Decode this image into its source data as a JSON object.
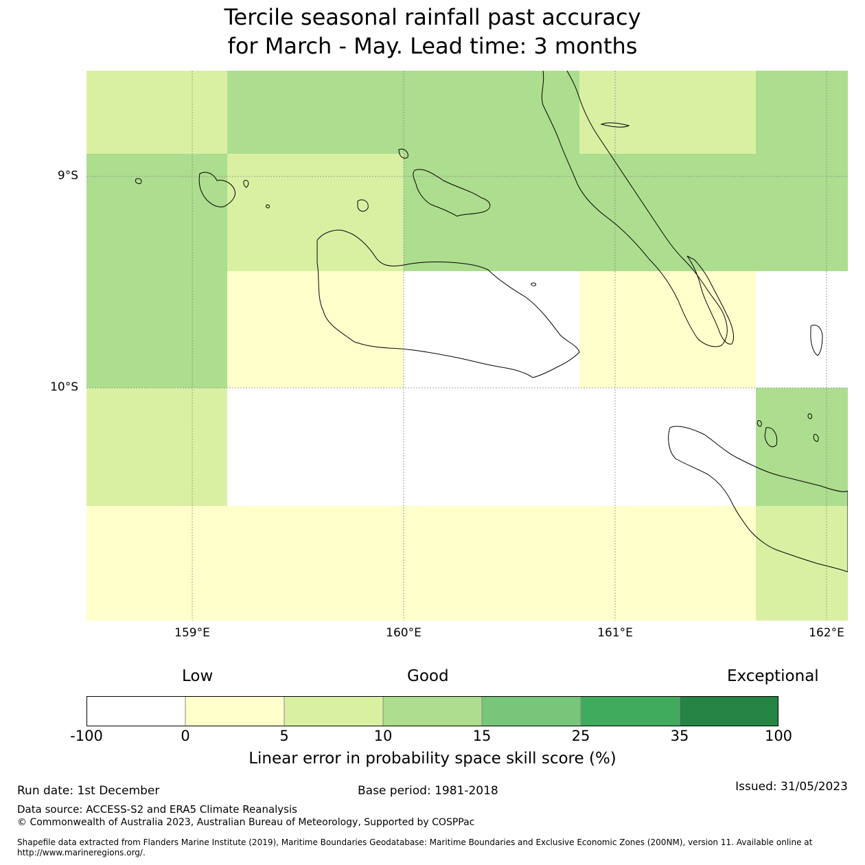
{
  "title_line1": "Tercile seasonal rainfall past accuracy",
  "title_line2": "for March - May. Lead time: 3 months",
  "map": {
    "lat_labels": [
      "9°S",
      "10°S"
    ],
    "lon_labels": [
      "159°E",
      "160°E",
      "161°E",
      "162°E"
    ]
  },
  "colorbar": {
    "categories": [
      "Low",
      "Good",
      "Exceptional"
    ],
    "ticks": [
      "-100",
      "0",
      "5",
      "10",
      "15",
      "25",
      "35",
      "100"
    ],
    "colors": [
      "#ffffff",
      "#ffffcc",
      "#d9f0a3",
      "#addd8e",
      "#78c679",
      "#41ab5d",
      "#238443"
    ],
    "label": "Linear error in probability space skill score (%)"
  },
  "footer": {
    "run_date": "Run date: 1st December",
    "base_period": "Base period: 1981-2018",
    "issued": "Issued: 31/05/2023",
    "data_source": "Data source: ACCESS-S2 and ERA5 Climate Reanalysis",
    "copyright": "© Commonwealth of Australia 2023, Australian Bureau of Meteorology, Supported by COSPPac",
    "shapefile": "Shapefile data extracted from Flanders Marine Institute (2019), Maritime Boundaries Geodatabase: Maritime Boundaries and Exclusive Economic Zones (200NM), version 11. Available online at http://www.marineregions.org/."
  }
}
